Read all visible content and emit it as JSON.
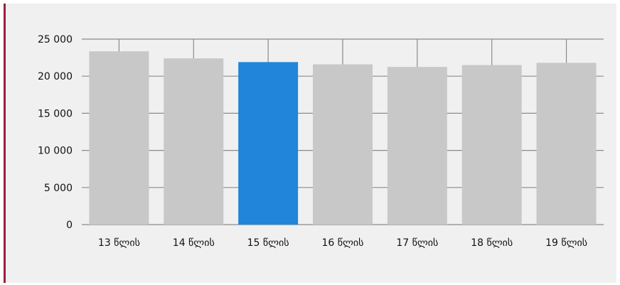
{
  "chart_data": {
    "type": "bar",
    "categories": [
      "13 წლის",
      "14 წლის",
      "15 წლის",
      "16 წლის",
      "17 წლის",
      "18 წლის",
      "19 წლის"
    ],
    "values": [
      23350,
      22400,
      21900,
      21600,
      21250,
      21500,
      21800
    ],
    "highlight_index": 2,
    "y_ticks": [
      "0",
      "5 000",
      "10 000",
      "15 000",
      "20 000",
      "25 000"
    ],
    "ylim": [
      0,
      25000
    ],
    "grid": true,
    "colors": {
      "bar": "#c8c8c8",
      "highlight": "#2185d9",
      "grid": "#8a8a8a",
      "accent": "#a01c3c",
      "background": "#f0f0f0"
    }
  }
}
